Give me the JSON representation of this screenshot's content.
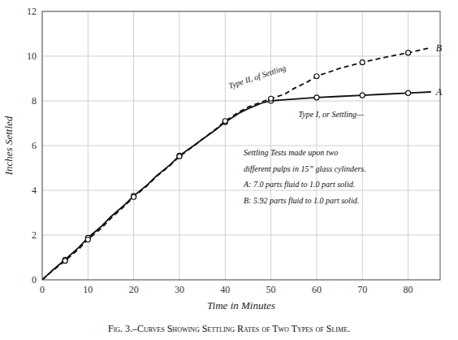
{
  "chart_data": {
    "type": "line",
    "title": "Fig. 3.–Curves Showing Settling Rates of Two Types of Slime.",
    "x_label": "Time in Minutes",
    "y_label": "Inches Settled",
    "xlim": [
      0,
      87
    ],
    "ylim": [
      0,
      12
    ],
    "xticks": [
      0,
      10,
      20,
      30,
      40,
      50,
      60,
      70,
      80
    ],
    "yticks": [
      0,
      2,
      4,
      6,
      8,
      10,
      12
    ],
    "grid": true,
    "series": [
      {
        "name": "A",
        "color": "#111111",
        "line_style": "solid",
        "x": [
          0,
          2,
          5,
          8,
          10,
          13,
          15,
          18,
          20,
          23,
          25,
          28,
          30,
          33,
          35,
          38,
          40,
          43,
          45,
          48,
          50,
          53,
          55,
          58,
          60,
          65,
          70,
          75,
          80,
          85
        ],
        "values": [
          0,
          0.38,
          0.9,
          1.45,
          1.88,
          2.4,
          2.82,
          3.35,
          3.75,
          4.25,
          4.65,
          5.15,
          5.55,
          5.98,
          6.28,
          6.72,
          7.05,
          7.45,
          7.65,
          7.9,
          8.0,
          8.05,
          8.08,
          8.12,
          8.15,
          8.2,
          8.25,
          8.3,
          8.35,
          8.4
        ]
      },
      {
        "name": "B",
        "color": "#111111",
        "line_style": "dashed",
        "x": [
          0,
          2,
          5,
          8,
          10,
          13,
          15,
          18,
          20,
          23,
          25,
          28,
          30,
          33,
          35,
          38,
          40,
          43,
          45,
          48,
          50,
          53,
          55,
          58,
          60,
          65,
          70,
          75,
          80,
          85
        ],
        "values": [
          0,
          0.36,
          0.85,
          1.38,
          1.8,
          2.32,
          2.75,
          3.3,
          3.7,
          4.22,
          4.62,
          5.12,
          5.52,
          5.96,
          6.28,
          6.75,
          7.1,
          7.5,
          7.72,
          7.95,
          8.1,
          8.3,
          8.55,
          8.85,
          9.1,
          9.45,
          9.72,
          9.95,
          10.15,
          10.38
        ]
      },
      {
        "type": "scatter",
        "marker": "circle",
        "color": "#111111",
        "x": [
          5,
          10,
          20,
          30,
          40,
          50,
          60,
          70,
          80
        ],
        "values": [
          0.9,
          1.88,
          3.75,
          5.55,
          7.05,
          8.0,
          8.15,
          8.25,
          8.35
        ]
      },
      {
        "type": "scatter",
        "marker": "circle",
        "color": "#111111",
        "x": [
          5,
          10,
          20,
          30,
          40,
          50,
          60,
          70,
          80
        ],
        "values": [
          0.85,
          1.8,
          3.7,
          5.52,
          7.1,
          8.1,
          9.1,
          9.72,
          10.15
        ]
      }
    ],
    "annotations": [
      "Type I, or Settling—",
      "Type II, of Settling",
      "Settling Tests made upon two",
      "different pulps in 15” glass cylinders.",
      "A: 7.0 parts fluid to 1.0  part solid.",
      "B: 5.92 parts fluid to 1.0 part solid."
    ]
  }
}
